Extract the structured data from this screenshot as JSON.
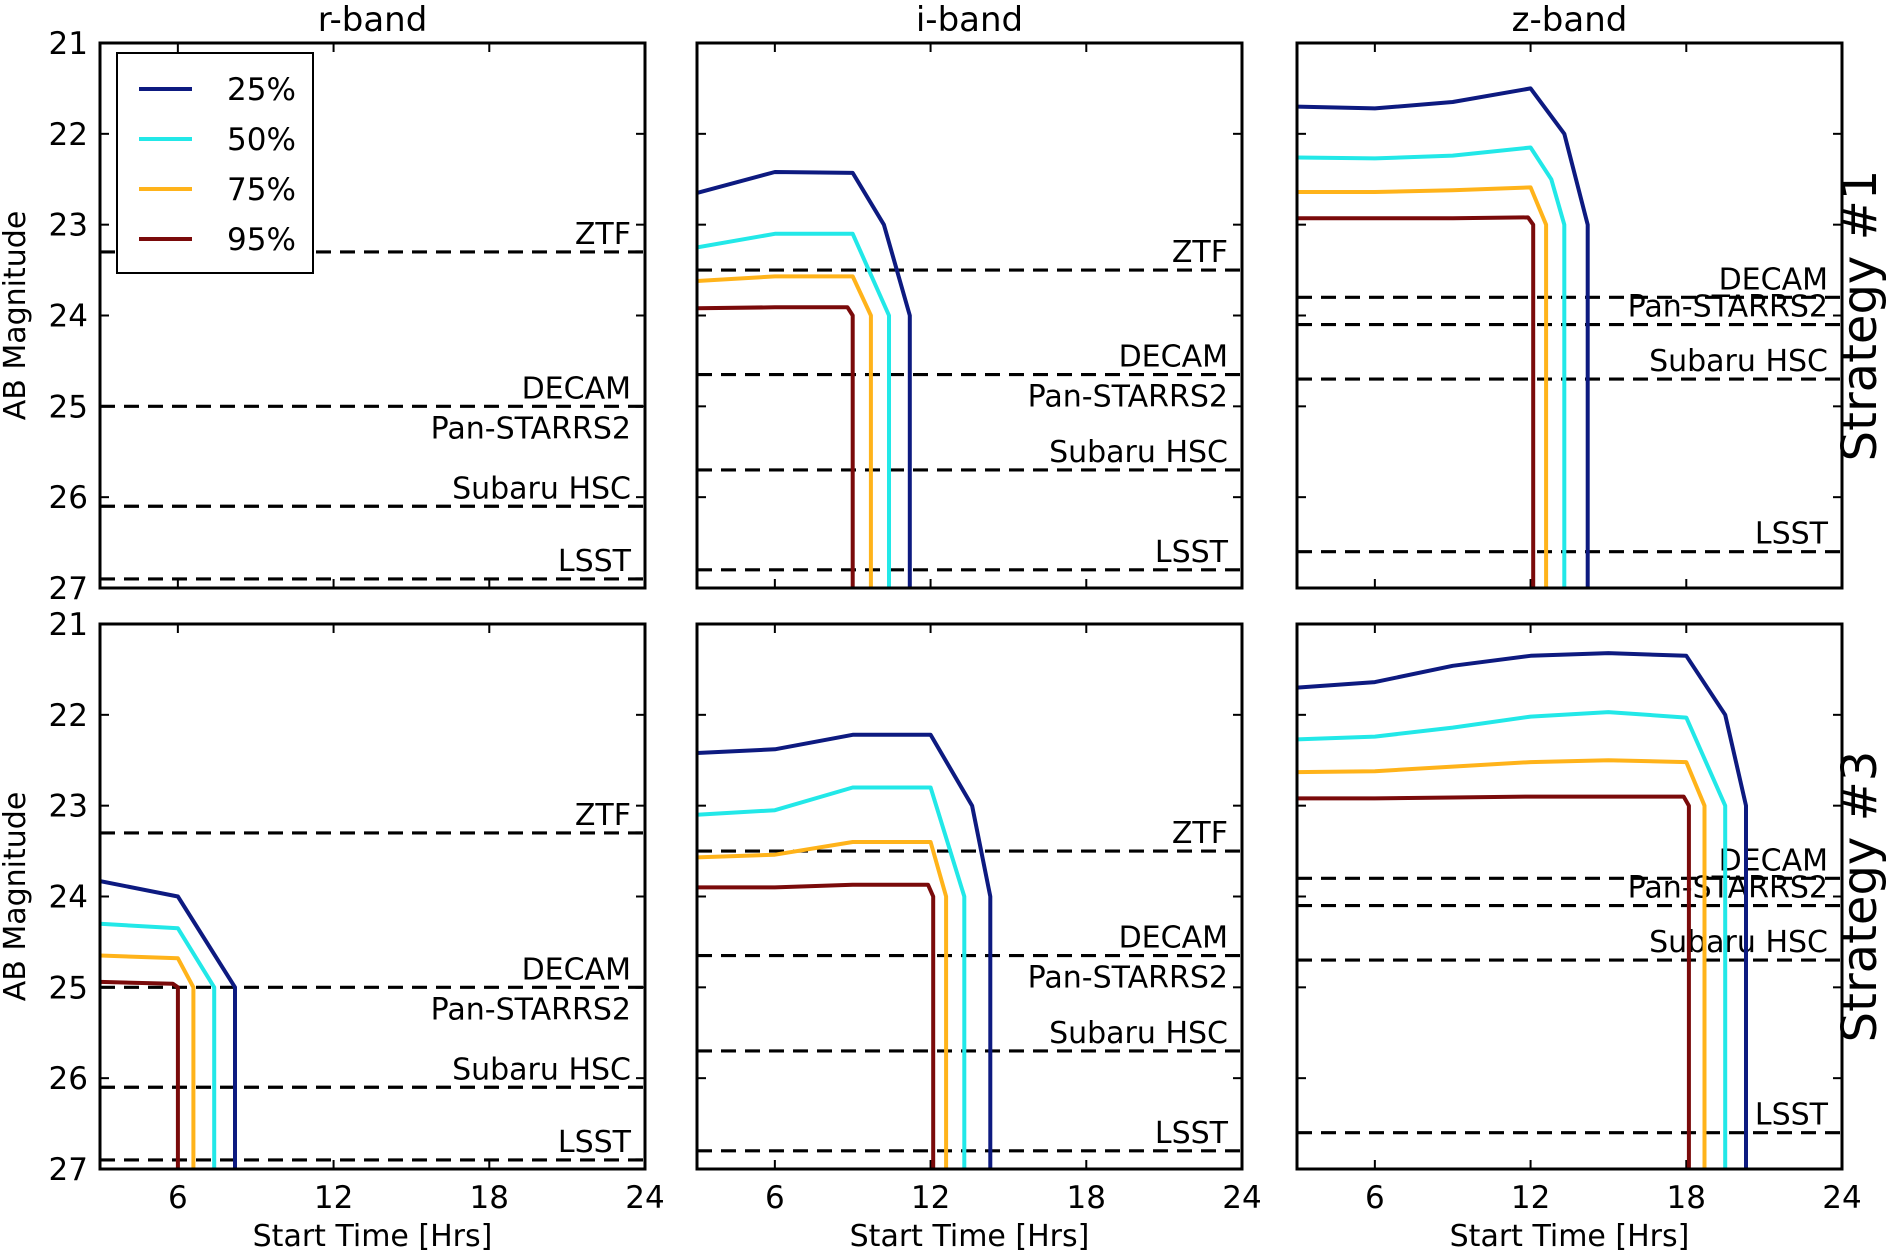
{
  "chart_data": {
    "type": "line",
    "columns": [
      "r-band",
      "i-band",
      "z-band"
    ],
    "rows": [
      "Strategy #1",
      "Strategy #3"
    ],
    "xlabel": "Start Time [Hrs]",
    "ylabel": "AB Magnitude",
    "xlim": [
      3,
      24
    ],
    "xticks": [
      6,
      12,
      18,
      24
    ],
    "ylim": [
      21,
      27
    ],
    "yticks": [
      21,
      22,
      23,
      24,
      25,
      26,
      27
    ],
    "y_inverted": true,
    "legend": {
      "placement": "top-left of first panel",
      "entries": [
        "25%",
        "50%",
        "75%",
        "95%"
      ]
    },
    "series_colors": {
      "25%": "#0d1a80",
      "50%": "#22e8e8",
      "75%": "#ffb31a",
      "95%": "#7a0a0a"
    },
    "reference_lines": {
      "r-band": [
        {
          "label": "ZTF",
          "y": 23.3
        },
        {
          "label": "DECAM",
          "y": 25.0
        },
        {
          "label": "Pan-STARRS2",
          "y": 25.0
        },
        {
          "label": "Subaru HSC",
          "y": 26.1
        },
        {
          "label": "LSST",
          "y": 26.9
        }
      ],
      "i-band": [
        {
          "label": "ZTF",
          "y": 23.5
        },
        {
          "label": "DECAM",
          "y": 24.65
        },
        {
          "label": "Pan-STARRS2",
          "y": 24.65
        },
        {
          "label": "Subaru HSC",
          "y": 25.7
        },
        {
          "label": "LSST",
          "y": 26.8
        }
      ],
      "z-band": [
        {
          "label": "DECAM",
          "y": 23.8
        },
        {
          "label": "Pan-STARRS2",
          "y": 24.1
        },
        {
          "label": "Subaru HSC",
          "y": 24.7
        },
        {
          "label": "LSST",
          "y": 26.6
        }
      ]
    },
    "panels": [
      {
        "row": "Strategy #1",
        "column": "r-band",
        "series": []
      },
      {
        "row": "Strategy #1",
        "column": "i-band",
        "series": [
          {
            "name": "25%",
            "points": [
              [
                3,
                22.65
              ],
              [
                6,
                22.42
              ],
              [
                9,
                22.43
              ],
              [
                10.2,
                23.0
              ],
              [
                11.2,
                24.0
              ],
              [
                11.2,
                27.0
              ]
            ]
          },
          {
            "name": "50%",
            "points": [
              [
                3,
                23.25
              ],
              [
                6,
                23.1
              ],
              [
                9,
                23.1
              ],
              [
                10.4,
                24.0
              ],
              [
                10.4,
                27.0
              ]
            ]
          },
          {
            "name": "75%",
            "points": [
              [
                3,
                23.62
              ],
              [
                6,
                23.57
              ],
              [
                9,
                23.57
              ],
              [
                9.7,
                24.0
              ],
              [
                9.7,
                27.0
              ]
            ]
          },
          {
            "name": "95%",
            "points": [
              [
                3,
                23.92
              ],
              [
                6,
                23.91
              ],
              [
                8.8,
                23.91
              ],
              [
                9.0,
                24.0
              ],
              [
                9.0,
                27.0
              ]
            ]
          }
        ]
      },
      {
        "row": "Strategy #1",
        "column": "z-band",
        "series": [
          {
            "name": "25%",
            "points": [
              [
                3,
                21.7
              ],
              [
                6,
                21.72
              ],
              [
                9,
                21.65
              ],
              [
                12,
                21.5
              ],
              [
                13.3,
                22.0
              ],
              [
                14.2,
                23.0
              ],
              [
                14.2,
                27.0
              ]
            ]
          },
          {
            "name": "50%",
            "points": [
              [
                3,
                22.26
              ],
              [
                6,
                22.27
              ],
              [
                9,
                22.24
              ],
              [
                12,
                22.15
              ],
              [
                12.8,
                22.5
              ],
              [
                13.3,
                23.0
              ],
              [
                13.3,
                27.0
              ]
            ]
          },
          {
            "name": "75%",
            "points": [
              [
                3,
                22.64
              ],
              [
                6,
                22.64
              ],
              [
                9,
                22.62
              ],
              [
                12,
                22.59
              ],
              [
                12.6,
                23.0
              ],
              [
                12.6,
                27.0
              ]
            ]
          },
          {
            "name": "95%",
            "points": [
              [
                3,
                22.93
              ],
              [
                6,
                22.93
              ],
              [
                9,
                22.93
              ],
              [
                11.9,
                22.92
              ],
              [
                12.1,
                23.0
              ],
              [
                12.1,
                27.0
              ]
            ]
          }
        ]
      },
      {
        "row": "Strategy #3",
        "column": "r-band",
        "series": [
          {
            "name": "25%",
            "points": [
              [
                3,
                23.83
              ],
              [
                6,
                24.0
              ],
              [
                8.2,
                25.0
              ],
              [
                8.2,
                27.0
              ]
            ]
          },
          {
            "name": "50%",
            "points": [
              [
                3,
                24.3
              ],
              [
                6,
                24.35
              ],
              [
                7.4,
                25.0
              ],
              [
                7.4,
                27.0
              ]
            ]
          },
          {
            "name": "75%",
            "points": [
              [
                3,
                24.65
              ],
              [
                6,
                24.68
              ],
              [
                6.6,
                25.0
              ],
              [
                6.6,
                27.0
              ]
            ]
          },
          {
            "name": "95%",
            "points": [
              [
                3,
                24.94
              ],
              [
                5.8,
                24.96
              ],
              [
                6.0,
                25.0
              ],
              [
                6.0,
                27.0
              ]
            ]
          }
        ]
      },
      {
        "row": "Strategy #3",
        "column": "i-band",
        "series": [
          {
            "name": "25%",
            "points": [
              [
                3,
                22.42
              ],
              [
                6,
                22.38
              ],
              [
                9,
                22.22
              ],
              [
                12,
                22.22
              ],
              [
                13.6,
                23.0
              ],
              [
                14.3,
                24.0
              ],
              [
                14.3,
                27.0
              ]
            ]
          },
          {
            "name": "50%",
            "points": [
              [
                3,
                23.1
              ],
              [
                6,
                23.05
              ],
              [
                9,
                22.8
              ],
              [
                12,
                22.8
              ],
              [
                13.3,
                24.0
              ],
              [
                13.3,
                27.0
              ]
            ]
          },
          {
            "name": "75%",
            "points": [
              [
                3,
                23.57
              ],
              [
                6,
                23.54
              ],
              [
                9,
                23.4
              ],
              [
                12,
                23.4
              ],
              [
                12.6,
                24.0
              ],
              [
                12.6,
                27.0
              ]
            ]
          },
          {
            "name": "95%",
            "points": [
              [
                3,
                23.9
              ],
              [
                6,
                23.9
              ],
              [
                9,
                23.87
              ],
              [
                11.9,
                23.87
              ],
              [
                12.1,
                24.0
              ],
              [
                12.1,
                27.0
              ]
            ]
          }
        ]
      },
      {
        "row": "Strategy #3",
        "column": "z-band",
        "series": [
          {
            "name": "25%",
            "points": [
              [
                3,
                21.7
              ],
              [
                6,
                21.64
              ],
              [
                9,
                21.46
              ],
              [
                12,
                21.35
              ],
              [
                15,
                21.32
              ],
              [
                18,
                21.35
              ],
              [
                19.5,
                22.0
              ],
              [
                20.3,
                23.0
              ],
              [
                20.3,
                27.0
              ]
            ]
          },
          {
            "name": "50%",
            "points": [
              [
                3,
                22.27
              ],
              [
                6,
                22.24
              ],
              [
                9,
                22.14
              ],
              [
                12,
                22.02
              ],
              [
                15,
                21.97
              ],
              [
                18,
                22.03
              ],
              [
                19.5,
                23.0
              ],
              [
                19.5,
                27.0
              ]
            ]
          },
          {
            "name": "75%",
            "points": [
              [
                3,
                22.63
              ],
              [
                6,
                22.62
              ],
              [
                9,
                22.57
              ],
              [
                12,
                22.52
              ],
              [
                15,
                22.5
              ],
              [
                18,
                22.52
              ],
              [
                18.7,
                23.0
              ],
              [
                18.7,
                27.0
              ]
            ]
          },
          {
            "name": "95%",
            "points": [
              [
                3,
                22.92
              ],
              [
                6,
                22.92
              ],
              [
                9,
                22.91
              ],
              [
                12,
                22.9
              ],
              [
                15,
                22.9
              ],
              [
                17.9,
                22.9
              ],
              [
                18.1,
                23.0
              ],
              [
                18.1,
                27.0
              ]
            ]
          }
        ]
      }
    ]
  }
}
